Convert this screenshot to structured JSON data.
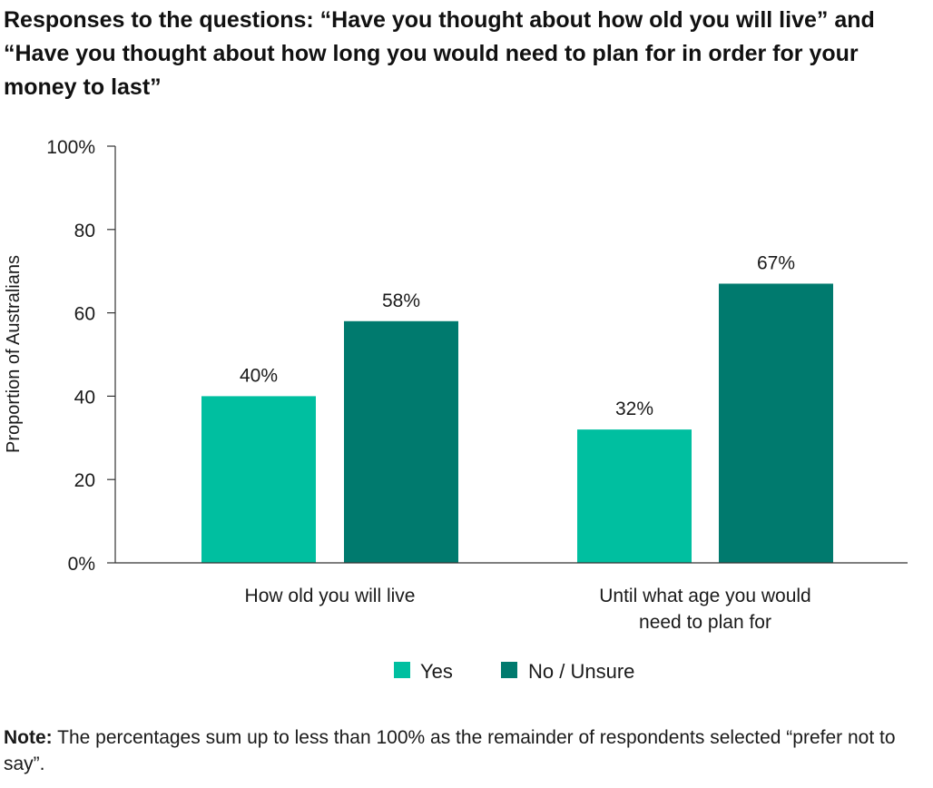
{
  "chart_data": {
    "type": "bar",
    "title": "Responses to the questions: “Have you thought about how old you will live” and “Have you thought about how long you would need to plan for in order for your money to last”",
    "categories": [
      "How old you will live",
      "Until what age you would need to plan for"
    ],
    "category_lines": [
      [
        "How old you will live"
      ],
      [
        "Until what age you would",
        "need to plan for"
      ]
    ],
    "series": [
      {
        "name": "Yes",
        "values": [
          40,
          32
        ],
        "labels": [
          "40%",
          "32%"
        ],
        "color": "#00bfa0"
      },
      {
        "name": "No / Unsure",
        "values": [
          58,
          67
        ],
        "labels": [
          "58%",
          "67%"
        ],
        "color": "#007a6e"
      }
    ],
    "ylabel": "Proportion of Australians",
    "xlabel": "",
    "ylim": [
      0,
      100
    ],
    "yticks": [
      {
        "value": 0,
        "label": "0%"
      },
      {
        "value": 20,
        "label": "20"
      },
      {
        "value": 40,
        "label": "40"
      },
      {
        "value": 60,
        "label": "60"
      },
      {
        "value": 80,
        "label": "80"
      },
      {
        "value": 100,
        "label": "100%"
      }
    ],
    "grid": false,
    "legend_position": "bottom-center"
  },
  "note": {
    "label": "Note:",
    "text": " The percentages sum up to less than 100% as the remainder of respondents selected “prefer not to say”."
  }
}
